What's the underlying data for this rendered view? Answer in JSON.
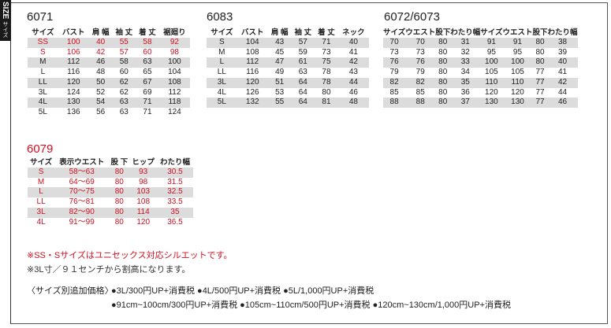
{
  "tab": {
    "label": "SIZE",
    "sub": "サイズ"
  },
  "colors": {
    "accent": "#d01020",
    "row_shade": "#dcdcdc"
  },
  "t6071": {
    "title": "6071",
    "headers": [
      "サイズ",
      "バスト",
      "肩 幅",
      "袖 丈",
      "着 丈",
      "裾廻り"
    ],
    "rows": [
      [
        "SS",
        "100",
        "40",
        "55",
        "58",
        "92"
      ],
      [
        "S",
        "106",
        "42",
        "57",
        "60",
        "98"
      ],
      [
        "M",
        "112",
        "46",
        "58",
        "63",
        "100"
      ],
      [
        "L",
        "116",
        "48",
        "60",
        "65",
        "104"
      ],
      [
        "LL",
        "120",
        "50",
        "62",
        "67",
        "108"
      ],
      [
        "3L",
        "124",
        "52",
        "62",
        "69",
        "112"
      ],
      [
        "4L",
        "130",
        "54",
        "63",
        "71",
        "118"
      ],
      [
        "5L",
        "136",
        "56",
        "63",
        "71",
        "124"
      ]
    ],
    "red_rows": [
      0,
      1
    ]
  },
  "t6083": {
    "title": "6083",
    "headers": [
      "サイズ",
      "バスト",
      "肩 幅",
      "袖 丈",
      "着 丈",
      "ネック"
    ],
    "rows": [
      [
        "S",
        "104",
        "43",
        "57",
        "71",
        "40"
      ],
      [
        "M",
        "108",
        "45",
        "59",
        "73",
        "41"
      ],
      [
        "L",
        "112",
        "47",
        "61",
        "75",
        "42"
      ],
      [
        "LL",
        "116",
        "49",
        "63",
        "78",
        "43"
      ],
      [
        "3L",
        "120",
        "51",
        "64",
        "78",
        "44"
      ],
      [
        "4L",
        "126",
        "53",
        "64",
        "80",
        "46"
      ],
      [
        "5L",
        "132",
        "55",
        "64",
        "81",
        "48"
      ]
    ]
  },
  "t6072": {
    "title": "6072/6073",
    "headers": [
      "サイズ",
      "ウエスト",
      "股下",
      "わたり幅",
      "サイズ",
      "ウエスト",
      "股下",
      "わたり幅"
    ],
    "rows": [
      [
        "70",
        "70",
        "80",
        "31",
        "91",
        "91",
        "80",
        "38"
      ],
      [
        "73",
        "73",
        "80",
        "32",
        "95",
        "95",
        "80",
        "39"
      ],
      [
        "76",
        "76",
        "80",
        "33",
        "100",
        "100",
        "80",
        "40"
      ],
      [
        "79",
        "79",
        "80",
        "34",
        "105",
        "105",
        "77",
        "41"
      ],
      [
        "82",
        "82",
        "80",
        "35",
        "110",
        "110",
        "77",
        "42"
      ],
      [
        "85",
        "85",
        "80",
        "36",
        "120",
        "120",
        "77",
        "44"
      ],
      [
        "88",
        "88",
        "80",
        "37",
        "130",
        "130",
        "77",
        "46"
      ]
    ]
  },
  "t6079": {
    "title": "6079",
    "headers": [
      "サイズ",
      "表示ウエスト",
      "股 下",
      "ヒップ",
      "わたり幅"
    ],
    "rows": [
      [
        "S",
        "58〜63",
        "80",
        "93",
        "30.5"
      ],
      [
        "M",
        "64〜69",
        "80",
        "98",
        "31.5"
      ],
      [
        "L",
        "70〜75",
        "80",
        "103",
        "32.5"
      ],
      [
        "LL",
        "76〜81",
        "80",
        "108",
        "33.5"
      ],
      [
        "3L",
        "82〜90",
        "80",
        "114",
        "35"
      ],
      [
        "4L",
        "91〜99",
        "80",
        "120",
        "36.5"
      ]
    ],
    "all_red": true
  },
  "notes": {
    "unisex": "※SS・Sサイズはユニセックス対応シルエットです。",
    "surcharge": "※3L寸／９１センチから割高になります。",
    "price_label": "〈サイズ別追加価格〉",
    "price_line1": "●3L/300円UP+消費税 ●4L/500円UP+消費税 ●5L/1,000円UP+消費税",
    "price_line2": "●91cm~100cm/300円UP+消費税 ●105cm~110cm/500円UP+消費税 ●120cm~130cm/1,000円UP+消費税"
  }
}
